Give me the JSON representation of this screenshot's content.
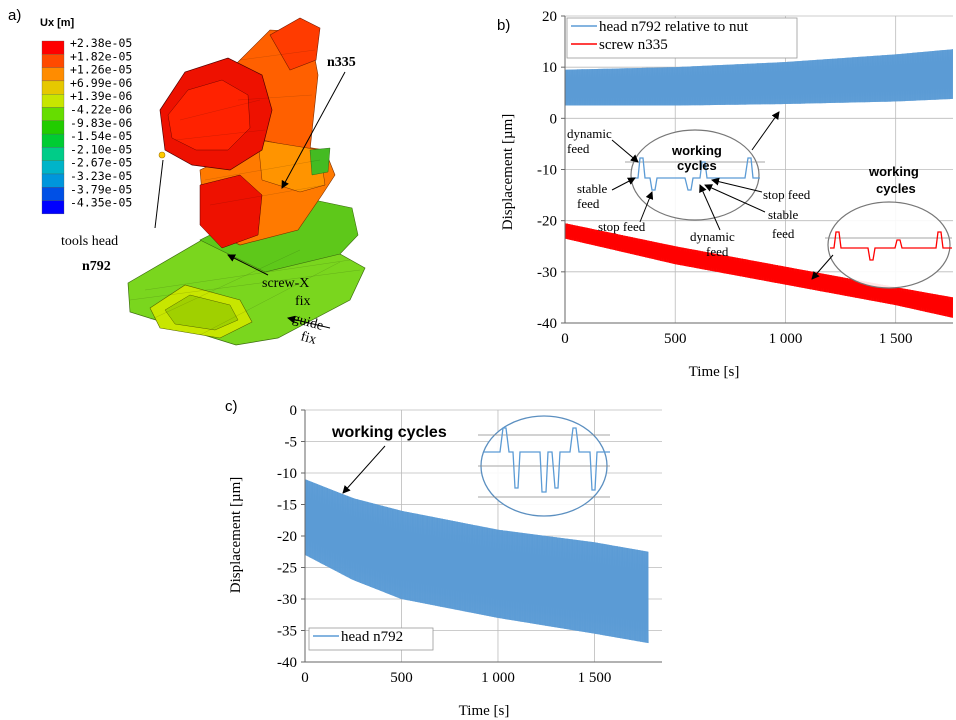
{
  "panel_a": {
    "label": "a)",
    "legend_title": "Ux  [m]",
    "legend_values": [
      "+2.38e-05",
      "+1.82e-05",
      "+1.26e-05",
      "+6.99e-06",
      "+1.39e-06",
      "-4.22e-06",
      "-9.83e-06",
      "-1.54e-05",
      "-2.10e-05",
      "-2.67e-05",
      "-3.23e-05",
      "-3.79e-05",
      "-4.35e-05"
    ],
    "legend_colors": [
      "#ff0000",
      "#ff4a00",
      "#ff8c00",
      "#e6c800",
      "#c8e600",
      "#66dd00",
      "#22cc00",
      "#00cc33",
      "#00cc88",
      "#00b4c8",
      "#0096dc",
      "#0050e6",
      "#0000ff"
    ],
    "annotations": {
      "tools_head": "tools head",
      "n792": "n792",
      "n335": "n335",
      "screw_x": "screw-X",
      "fix1": "fix",
      "guide": "guide",
      "fix2": "fix"
    }
  },
  "panel_b": {
    "label": "b)",
    "ylabel": "Displacement [µm]",
    "xlabel": "Time [s]",
    "annotations": {
      "working_cycles_1": "working",
      "working_cycles_1b": "cycles",
      "working_cycles_2": "working",
      "working_cycles_2b": "cycles",
      "dynamic_feed_1a": "dynamic",
      "dynamic_feed_1b": "feed",
      "stable_feed_1a": "stable",
      "stable_feed_1b": "feed",
      "stop_feed_1": "stop feed",
      "dynamic_feed_2a": "dynamic",
      "dynamic_feed_2b": "feed",
      "stop_feed_2": "stop feed",
      "stable_feed_2a": "stable",
      "stable_feed_2b": "feed"
    }
  },
  "panel_c": {
    "label": "c)",
    "ylabel": "Displacement [µm]",
    "xlabel": "Time [s]",
    "annotation": "working cycles"
  },
  "chart_data": [
    {
      "type": "area",
      "panel": "b",
      "xlabel": "Time [s]",
      "ylabel": "Displacement [µm]",
      "xlim": [
        0,
        1760
      ],
      "ylim": [
        -40,
        20
      ],
      "xticks": [
        "0",
        "500",
        "1 000",
        "1 500"
      ],
      "xtick_values": [
        0,
        500,
        1000,
        1500
      ],
      "yticks": [
        "20",
        "10",
        "0",
        "-10",
        "-20",
        "-30",
        "-40"
      ],
      "ytick_values": [
        20,
        10,
        0,
        -10,
        -20,
        -30,
        -40
      ],
      "legend_position": "top-left",
      "series": [
        {
          "name": "head n792 relative to nut",
          "color": "#5b9bd5",
          "x": [
            0,
            500,
            1000,
            1500,
            1760
          ],
          "upper": [
            9.5,
            10,
            11,
            12.5,
            13.5
          ],
          "lower": [
            2.5,
            2.5,
            2.8,
            3.3,
            3.8
          ]
        },
        {
          "name": "screw n335",
          "color": "#ff0000",
          "x": [
            0,
            500,
            1000,
            1500,
            1760
          ],
          "upper": [
            -20.5,
            -25,
            -29,
            -33,
            -35
          ],
          "lower": [
            -23.5,
            -28.5,
            -32.5,
            -36.5,
            -39
          ]
        }
      ]
    },
    {
      "type": "area",
      "panel": "c",
      "xlabel": "Time [s]",
      "ylabel": "Displacement [µm]",
      "xlim": [
        0,
        1850
      ],
      "ylim": [
        -40,
        0
      ],
      "xticks": [
        "0",
        "500",
        "1 000",
        "1 500"
      ],
      "xtick_values": [
        0,
        500,
        1000,
        1500
      ],
      "yticks": [
        "0",
        "-5",
        "-10",
        "-15",
        "-20",
        "-25",
        "-30",
        "-35",
        "-40"
      ],
      "ytick_values": [
        0,
        -5,
        -10,
        -15,
        -20,
        -25,
        -30,
        -35,
        -40
      ],
      "legend_position": "bottom-left",
      "series": [
        {
          "name": "head n792",
          "color": "#5b9bd5",
          "x": [
            0,
            250,
            500,
            1000,
            1500,
            1780
          ],
          "upper": [
            -11,
            -14,
            -16,
            -19,
            -21,
            -22.5
          ],
          "lower": [
            -23,
            -27,
            -30,
            -33,
            -35.5,
            -37
          ]
        }
      ]
    }
  ]
}
